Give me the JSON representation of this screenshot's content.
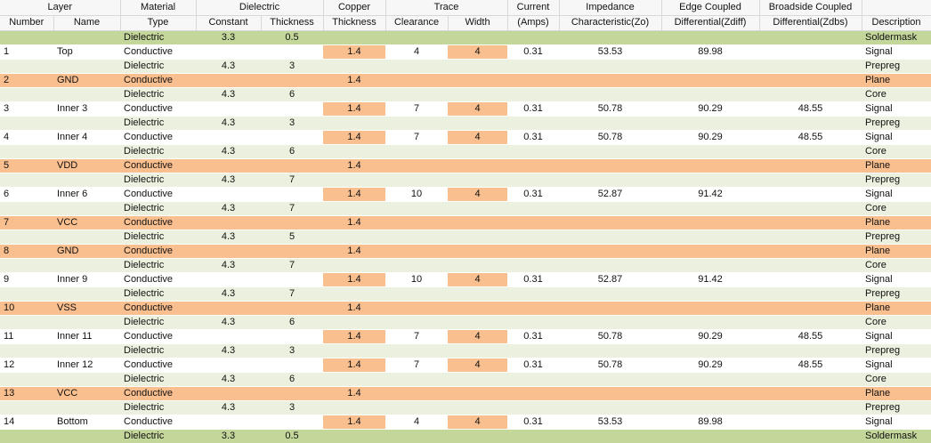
{
  "header": {
    "groups": [
      "Layer",
      "Material",
      "Dielectric",
      "Copper",
      "Trace",
      "Current",
      "Impedance",
      "Edge Coupled",
      "Broadside Coupled"
    ],
    "columns": [
      "Number",
      "Name",
      "Type",
      "Constant",
      "Thickness",
      "Thickness",
      "Clearance",
      "Width",
      "(Amps)",
      "Characteristic(Zo)",
      "Differential(Zdiff)",
      "Differential(Zdbs)",
      "Description"
    ]
  },
  "table": {
    "rows": [
      [
        null,
        null,
        "Dielectric",
        3.3,
        0.5,
        null,
        null,
        null,
        null,
        null,
        null,
        null,
        "Soldermask"
      ],
      [
        1,
        "Top",
        "Conductive",
        null,
        null,
        1.4,
        4,
        4,
        0.31,
        53.53,
        89.98,
        null,
        "Signal"
      ],
      [
        null,
        null,
        "Dielectric",
        4.3,
        3,
        null,
        null,
        null,
        null,
        null,
        null,
        null,
        "Prepreg"
      ],
      [
        2,
        "GND",
        "Conductive",
        null,
        null,
        1.4,
        null,
        null,
        null,
        null,
        null,
        null,
        "Plane"
      ],
      [
        null,
        null,
        "Dielectric",
        4.3,
        6,
        null,
        null,
        null,
        null,
        null,
        null,
        null,
        "Core"
      ],
      [
        3,
        "Inner 3",
        "Conductive",
        null,
        null,
        1.4,
        7,
        4,
        0.31,
        50.78,
        90.29,
        48.55,
        "Signal"
      ],
      [
        null,
        null,
        "Dielectric",
        4.3,
        3,
        null,
        null,
        null,
        null,
        null,
        null,
        null,
        "Prepreg"
      ],
      [
        4,
        "Inner 4",
        "Conductive",
        null,
        null,
        1.4,
        7,
        4,
        0.31,
        50.78,
        90.29,
        48.55,
        "Signal"
      ],
      [
        null,
        null,
        "Dielectric",
        4.3,
        6,
        null,
        null,
        null,
        null,
        null,
        null,
        null,
        "Core"
      ],
      [
        5,
        "VDD",
        "Conductive",
        null,
        null,
        1.4,
        null,
        null,
        null,
        null,
        null,
        null,
        "Plane"
      ],
      [
        null,
        null,
        "Dielectric",
        4.3,
        7,
        null,
        null,
        null,
        null,
        null,
        null,
        null,
        "Prepreg"
      ],
      [
        6,
        "Inner 6",
        "Conductive",
        null,
        null,
        1.4,
        10,
        4,
        0.31,
        52.87,
        91.42,
        null,
        "Signal"
      ],
      [
        null,
        null,
        "Dielectric",
        4.3,
        7,
        null,
        null,
        null,
        null,
        null,
        null,
        null,
        "Core"
      ],
      [
        7,
        "VCC",
        "Conductive",
        null,
        null,
        1.4,
        null,
        null,
        null,
        null,
        null,
        null,
        "Plane"
      ],
      [
        null,
        null,
        "Dielectric",
        4.3,
        5,
        null,
        null,
        null,
        null,
        null,
        null,
        null,
        "Prepreg"
      ],
      [
        8,
        "GND",
        "Conductive",
        null,
        null,
        1.4,
        null,
        null,
        null,
        null,
        null,
        null,
        "Plane"
      ],
      [
        null,
        null,
        "Dielectric",
        4.3,
        7,
        null,
        null,
        null,
        null,
        null,
        null,
        null,
        "Core"
      ],
      [
        9,
        "Inner 9",
        "Conductive",
        null,
        null,
        1.4,
        10,
        4,
        0.31,
        52.87,
        91.42,
        null,
        "Signal"
      ],
      [
        null,
        null,
        "Dielectric",
        4.3,
        7,
        null,
        null,
        null,
        null,
        null,
        null,
        null,
        "Prepreg"
      ],
      [
        10,
        "VSS",
        "Conductive",
        null,
        null,
        1.4,
        null,
        null,
        null,
        null,
        null,
        null,
        "Plane"
      ],
      [
        null,
        null,
        "Dielectric",
        4.3,
        6,
        null,
        null,
        null,
        null,
        null,
        null,
        null,
        "Core"
      ],
      [
        11,
        "Inner 11",
        "Conductive",
        null,
        null,
        1.4,
        7,
        4,
        0.31,
        50.78,
        90.29,
        48.55,
        "Signal"
      ],
      [
        null,
        null,
        "Dielectric",
        4.3,
        3,
        null,
        null,
        null,
        null,
        null,
        null,
        null,
        "Prepreg"
      ],
      [
        12,
        "Inner 12",
        "Conductive",
        null,
        null,
        1.4,
        7,
        4,
        0.31,
        50.78,
        90.29,
        48.55,
        "Signal"
      ],
      [
        null,
        null,
        "Dielectric",
        4.3,
        6,
        null,
        null,
        null,
        null,
        null,
        null,
        null,
        "Core"
      ],
      [
        13,
        "VCC",
        "Conductive",
        null,
        null,
        1.4,
        null,
        null,
        null,
        null,
        null,
        null,
        "Plane"
      ],
      [
        null,
        null,
        "Dielectric",
        4.3,
        3,
        null,
        null,
        null,
        null,
        null,
        null,
        null,
        "Prepreg"
      ],
      [
        14,
        "Bottom",
        "Conductive",
        null,
        null,
        1.4,
        4,
        4,
        0.31,
        53.53,
        89.98,
        null,
        "Signal"
      ],
      [
        null,
        null,
        "Dielectric",
        3.3,
        0.5,
        null,
        null,
        null,
        null,
        null,
        null,
        null,
        "Soldermask"
      ]
    ]
  }
}
